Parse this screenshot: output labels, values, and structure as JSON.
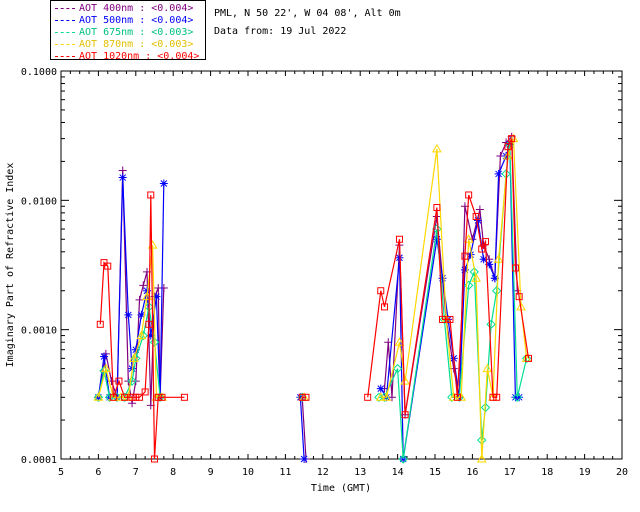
{
  "header": {
    "site": "PML, N 50 22', W 04 08', Alt 0m",
    "date": "Data from: 19 Jul 2022"
  },
  "chart_data": {
    "type": "line",
    "title": "",
    "xlabel": "Time (GMT)",
    "ylabel": "Imaginary Part of Refractive Index",
    "xlim": [
      5,
      20
    ],
    "ylim": [
      0.0001,
      0.1
    ],
    "yscale": "log",
    "xticks": [
      5,
      6,
      7,
      8,
      9,
      10,
      11,
      12,
      13,
      14,
      15,
      16,
      17,
      18,
      19,
      20
    ],
    "yticks": [
      0.0001,
      0.001,
      0.01,
      0.1
    ],
    "ytick_labels": [
      "0.0001",
      "0.0010",
      "0.0100",
      "0.1000"
    ],
    "legend_position": "top-left",
    "series": [
      {
        "name": "AOT  400nm : <0.004>",
        "color": "#800080",
        "marker": "plus",
        "points": [
          [
            6.0,
            0.0003
          ],
          [
            6.2,
            0.00065
          ],
          [
            6.35,
            0.0004
          ],
          [
            6.5,
            0.0003
          ],
          [
            6.65,
            0.017
          ],
          [
            6.8,
            0.0004
          ],
          [
            6.9,
            0.00027
          ],
          [
            7.0,
            0.0004
          ],
          [
            7.1,
            0.0017
          ],
          [
            7.2,
            0.0022
          ],
          [
            7.3,
            0.0028
          ],
          [
            7.4,
            0.00026
          ],
          [
            7.5,
            0.0018
          ],
          [
            7.6,
            0.0021
          ],
          [
            7.65,
            0.0003
          ],
          [
            7.75,
            0.0021
          ],
          [
            11.45,
            0.0003
          ],
          [
            11.55,
            0.0001
          ],
          [
            13.65,
            0.00035
          ],
          [
            13.75,
            0.0008
          ],
          [
            13.85,
            0.0003
          ],
          [
            14.05,
            0.0045
          ],
          [
            14.2,
            0.00022
          ],
          [
            15.05,
            0.0075
          ],
          [
            15.3,
            0.0012
          ],
          [
            15.5,
            0.0005
          ],
          [
            15.65,
            0.0003
          ],
          [
            15.8,
            0.009
          ],
          [
            16.0,
            0.005
          ],
          [
            16.2,
            0.0085
          ],
          [
            16.3,
            0.0045
          ],
          [
            16.45,
            0.0035
          ],
          [
            16.6,
            0.0025
          ],
          [
            16.75,
            0.022
          ],
          [
            16.9,
            0.028
          ],
          [
            17.05,
            0.031
          ],
          [
            17.2,
            0.002
          ]
        ]
      },
      {
        "name": "AOT  500nm : <0.004>",
        "color": "#0000ff",
        "marker": "asterisk",
        "points": [
          [
            6.0,
            0.0003
          ],
          [
            6.15,
            0.00062
          ],
          [
            6.3,
            0.0003
          ],
          [
            6.5,
            0.0003
          ],
          [
            6.65,
            0.015
          ],
          [
            6.8,
            0.0013
          ],
          [
            6.9,
            0.0005
          ],
          [
            7.0,
            0.0007
          ],
          [
            7.15,
            0.0013
          ],
          [
            7.3,
            0.002
          ],
          [
            7.4,
            0.0009
          ],
          [
            7.55,
            0.0018
          ],
          [
            7.65,
            0.0003
          ],
          [
            7.75,
            0.0135
          ],
          [
            11.4,
            0.0003
          ],
          [
            11.5,
            0.0001
          ],
          [
            13.55,
            0.00035
          ],
          [
            13.7,
            0.0003
          ],
          [
            14.05,
            0.0036
          ],
          [
            14.15,
            0.0001
          ],
          [
            15.05,
            0.005
          ],
          [
            15.2,
            0.0025
          ],
          [
            15.35,
            0.0012
          ],
          [
            15.5,
            0.0006
          ],
          [
            15.65,
            0.0003
          ],
          [
            15.8,
            0.0029
          ],
          [
            15.95,
            0.0038
          ],
          [
            16.15,
            0.007
          ],
          [
            16.3,
            0.0035
          ],
          [
            16.45,
            0.0032
          ],
          [
            16.6,
            0.0025
          ],
          [
            16.7,
            0.016
          ],
          [
            16.9,
            0.022
          ],
          [
            17.0,
            0.027
          ],
          [
            17.15,
            0.0003
          ],
          [
            17.25,
            0.0003
          ]
        ]
      },
      {
        "name": "AOT  675nm : <0.003>",
        "color": "#00e090",
        "marker": "diamond",
        "points": [
          [
            6.0,
            0.0003
          ],
          [
            6.15,
            0.00048
          ],
          [
            6.3,
            0.0003
          ],
          [
            6.5,
            0.0003
          ],
          [
            6.7,
            0.0003
          ],
          [
            6.9,
            0.0004
          ],
          [
            7.0,
            0.0006
          ],
          [
            7.2,
            0.0009
          ],
          [
            7.35,
            0.0015
          ],
          [
            7.5,
            0.0008
          ],
          [
            7.65,
            0.0003
          ],
          [
            11.45,
            0.0003
          ],
          [
            13.5,
            0.0003
          ],
          [
            13.65,
            0.0003
          ],
          [
            14.0,
            0.0005
          ],
          [
            14.15,
            0.0001
          ],
          [
            15.05,
            0.006
          ],
          [
            15.25,
            0.0012
          ],
          [
            15.45,
            0.0003
          ],
          [
            15.65,
            0.0003
          ],
          [
            15.9,
            0.0022
          ],
          [
            16.05,
            0.0028
          ],
          [
            16.25,
            0.00014
          ],
          [
            16.35,
            0.00025
          ],
          [
            16.5,
            0.0011
          ],
          [
            16.65,
            0.002
          ],
          [
            16.9,
            0.016
          ],
          [
            17.0,
            0.027
          ],
          [
            17.2,
            0.0003
          ],
          [
            17.45,
            0.0006
          ]
        ]
      },
      {
        "name": "AOT  870nm : <0.003>",
        "color": "#ffd700",
        "marker": "triangle",
        "points": [
          [
            6.0,
            0.0003
          ],
          [
            6.2,
            0.0005
          ],
          [
            6.4,
            0.0003
          ],
          [
            6.6,
            0.0003
          ],
          [
            6.8,
            0.0003
          ],
          [
            6.95,
            0.0006
          ],
          [
            7.15,
            0.0009
          ],
          [
            7.3,
            0.0018
          ],
          [
            7.45,
            0.0045
          ],
          [
            7.55,
            0.0003
          ],
          [
            7.7,
            0.0003
          ],
          [
            11.5,
            0.0003
          ],
          [
            13.55,
            0.0003
          ],
          [
            13.7,
            0.0003
          ],
          [
            14.05,
            0.0008
          ],
          [
            14.2,
            0.0004
          ],
          [
            15.05,
            0.025
          ],
          [
            15.3,
            0.0012
          ],
          [
            15.5,
            0.0003
          ],
          [
            15.7,
            0.0003
          ],
          [
            15.9,
            0.005
          ],
          [
            16.1,
            0.0025
          ],
          [
            16.25,
            0.0001
          ],
          [
            16.4,
            0.0005
          ],
          [
            16.55,
            0.0003
          ],
          [
            16.7,
            0.0035
          ],
          [
            16.95,
            0.022
          ],
          [
            17.1,
            0.03
          ],
          [
            17.3,
            0.0015
          ],
          [
            17.45,
            0.0006
          ]
        ]
      },
      {
        "name": "AOT 1020nm : <0.004>",
        "color": "#ff0000",
        "marker": "square",
        "points": [
          [
            6.05,
            0.0011
          ],
          [
            6.15,
            0.0033
          ],
          [
            6.25,
            0.0031
          ],
          [
            6.4,
            0.0003
          ],
          [
            6.55,
            0.0004
          ],
          [
            6.7,
            0.0003
          ],
          [
            6.9,
            0.0003
          ],
          [
            7.0,
            0.0003
          ],
          [
            7.1,
            0.0003
          ],
          [
            7.25,
            0.00033
          ],
          [
            7.35,
            0.0011
          ],
          [
            7.4,
            0.011
          ],
          [
            7.5,
            0.0001
          ],
          [
            7.6,
            0.0003
          ],
          [
            7.7,
            0.0003
          ],
          [
            8.3,
            0.0003
          ],
          [
            11.45,
            0.0003
          ],
          [
            11.55,
            0.0003
          ],
          [
            13.2,
            0.0003
          ],
          [
            13.55,
            0.002
          ],
          [
            13.65,
            0.0015
          ],
          [
            14.05,
            0.005
          ],
          [
            14.2,
            0.00022
          ],
          [
            15.05,
            0.0088
          ],
          [
            15.2,
            0.0012
          ],
          [
            15.4,
            0.0012
          ],
          [
            15.6,
            0.0003
          ],
          [
            15.8,
            0.0037
          ],
          [
            15.9,
            0.011
          ],
          [
            16.1,
            0.0075
          ],
          [
            16.25,
            0.0042
          ],
          [
            16.35,
            0.0048
          ],
          [
            16.55,
            0.0003
          ],
          [
            16.65,
            0.0003
          ],
          [
            16.95,
            0.026
          ],
          [
            17.05,
            0.03
          ],
          [
            17.15,
            0.003
          ],
          [
            17.25,
            0.0018
          ],
          [
            17.5,
            0.0006
          ]
        ]
      }
    ]
  }
}
